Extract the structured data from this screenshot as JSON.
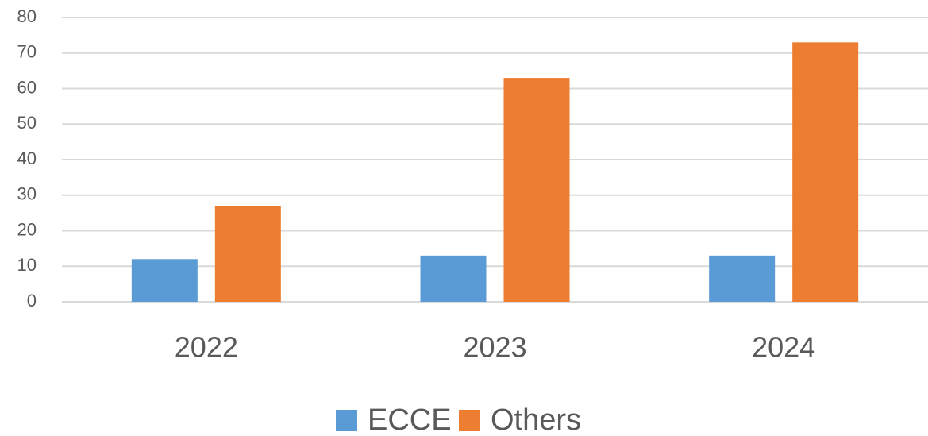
{
  "chart_data": {
    "type": "bar",
    "categories": [
      "2022",
      "2023",
      "2024"
    ],
    "series": [
      {
        "name": "ECCE",
        "color": "#5b9bd5",
        "values": [
          12,
          13,
          13
        ]
      },
      {
        "name": "Others",
        "color": "#ed7d31",
        "values": [
          27,
          63,
          73
        ]
      }
    ],
    "ylim": [
      0,
      80
    ],
    "yticks": [
      0,
      10,
      20,
      30,
      40,
      50,
      60,
      70,
      80
    ],
    "grid": true,
    "legend": "bottom"
  }
}
